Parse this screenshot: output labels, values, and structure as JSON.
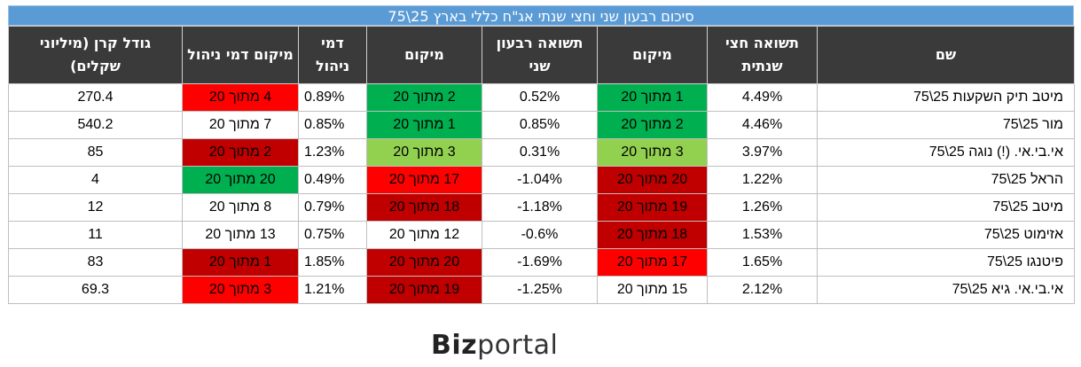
{
  "title": "סיכום רבעון שני וחצי שנתי אג\"ח כללי בארץ 25\\75",
  "headers": {
    "name": "שם",
    "half_return": "תשואה חצי שנתית",
    "half_rank": "מיקום",
    "q_return": "תשואה רבעון שני",
    "q_rank": "מיקום",
    "fee": "דמי ניהול",
    "fee_rank": "מיקום דמי ניהול",
    "size": "גודל קרן (מיליוני שקלים)"
  },
  "rows": [
    {
      "name": "מיטב תיק השקעות 25\\75",
      "half_return": "4.49%",
      "half_rank": "1 מתוך 20",
      "q_return": "0.52%",
      "q_rank": "2 מתוך 20",
      "fee": "0.89%",
      "fee_rank": "4 מתוך 20",
      "size": "270.4"
    },
    {
      "name": "מור 25\\75",
      "half_return": "4.46%",
      "half_rank": "2 מתוך 20",
      "q_return": "0.85%",
      "q_rank": "1 מתוך 20",
      "fee": "0.85%",
      "fee_rank": "7 מתוך 20",
      "size": "540.2"
    },
    {
      "name": "אי.בי.אי. (!) נוגה 25\\75",
      "half_return": "3.97%",
      "half_rank": "3 מתוך 20",
      "q_return": "0.31%",
      "q_rank": "3 מתוך 20",
      "fee": "1.23%",
      "fee_rank": "2 מתוך 20",
      "size": "85"
    },
    {
      "name": "הראל 25\\75",
      "half_return": "1.22%",
      "half_rank": "20 מתוך 20",
      "q_return": "-1.04%",
      "q_rank": "17 מתוך 20",
      "fee": "0.49%",
      "fee_rank": "20 מתוך 20",
      "size": "4"
    },
    {
      "name": "מיטב 25\\75",
      "half_return": "1.26%",
      "half_rank": "19 מתוך 20",
      "q_return": "-1.18%",
      "q_rank": "18 מתוך 20",
      "fee": "0.79%",
      "fee_rank": "8 מתוך 20",
      "size": "12"
    },
    {
      "name": "אזימוט 25\\75",
      "half_return": "1.53%",
      "half_rank": "18 מתוך 20",
      "q_return": "-0.6%",
      "q_rank": "12 מתוך 20",
      "fee": "0.75%",
      "fee_rank": "13 מתוך 20",
      "size": "11"
    },
    {
      "name": "פיטנגו 25\\75",
      "half_return": "1.65%",
      "half_rank": "17 מתוך 20",
      "q_return": "-1.69%",
      "q_rank": "20 מתוך 20",
      "fee": "1.85%",
      "fee_rank": "1 מתוך 20",
      "size": "83"
    },
    {
      "name": "אי.בי.אי. גיא 25\\75",
      "half_return": "2.12%",
      "half_rank": "15 מתוך 20",
      "q_return": "-1.25%",
      "q_rank": "19 מתוך 20",
      "fee": "1.21%",
      "fee_rank": "3 מתוך 20",
      "size": "69.3"
    }
  ],
  "cell_colors": {
    "dark_green": "#00b050",
    "light_green": "#92d050",
    "red": "#ff0000",
    "dark_red": "#c00000"
  },
  "logo": {
    "part1": "Biz",
    "part2": "portal"
  }
}
